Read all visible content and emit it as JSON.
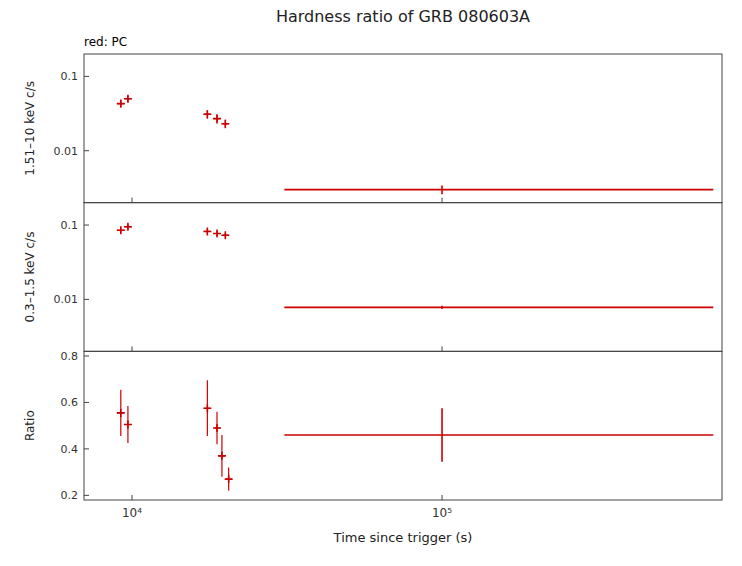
{
  "chart_data": [
    {
      "type": "scatter",
      "title": "Hardness ratio of GRB 080603A",
      "annotation": "red: PC",
      "ylabel": "1.51–10 keV c/s",
      "log": true,
      "grid": false,
      "tick_labels": "y",
      "xlim": [
        7000,
        800000
      ],
      "xticks": [
        {
          "value": 10000,
          "label": "10⁴"
        },
        {
          "value": 100000,
          "label": "10⁵"
        }
      ],
      "ylim": [
        0.002,
        0.2
      ],
      "yticks": [
        0.01,
        0.1
      ],
      "series": [
        {
          "type": "scatter",
          "marker": "plus",
          "color": "#cc0000",
          "x": [
            9200,
            9700,
            17500,
            18800,
            20000
          ],
          "values": [
            0.043,
            0.05,
            0.031,
            0.027,
            0.023
          ],
          "x_errors": [
            250,
            250,
            400,
            400,
            400
          ],
          "errors": [
            0.005,
            0.005,
            0.004,
            0.004,
            0.003
          ]
        },
        {
          "type": "segment",
          "line_style": "solid",
          "color": "#cc0000",
          "x": [
            31000,
            750000
          ],
          "value": 0.003,
          "error_x": 100000,
          "error": 0.0004
        }
      ]
    },
    {
      "type": "scatter",
      "ylabel": "0.3–1.5 keV c/s",
      "log": true,
      "grid": false,
      "tick_labels": "y",
      "xlim": [
        7000,
        800000
      ],
      "xticks": [
        {
          "value": 10000,
          "label": "10⁴"
        },
        {
          "value": 100000,
          "label": "10⁵"
        }
      ],
      "ylim": [
        0.002,
        0.2
      ],
      "yticks": [
        0.01,
        0.1
      ],
      "series": [
        {
          "type": "scatter",
          "marker": "plus",
          "color": "#cc0000",
          "x": [
            9200,
            9700,
            17500,
            18800,
            20000
          ],
          "values": [
            0.085,
            0.095,
            0.082,
            0.077,
            0.073
          ],
          "x_errors": [
            250,
            250,
            400,
            400,
            400
          ],
          "errors": [
            0.007,
            0.007,
            0.006,
            0.006,
            0.005
          ]
        },
        {
          "type": "segment",
          "line_style": "solid",
          "color": "#cc0000",
          "x": [
            31000,
            750000
          ],
          "value": 0.0078,
          "error_x": 100000,
          "error": 0.0004
        }
      ]
    },
    {
      "type": "scatter",
      "ylabel": "Ratio",
      "xlabel": "Time since trigger (s)",
      "log": "x",
      "grid": false,
      "xlim": [
        7000,
        800000
      ],
      "xticks": [
        {
          "value": 10000,
          "label": "10⁴"
        },
        {
          "value": 100000,
          "label": "10⁵"
        }
      ],
      "ylim": [
        0.18,
        0.82
      ],
      "yticks": [
        0.2,
        0.4,
        0.6,
        0.8
      ],
      "series": [
        {
          "type": "scatter",
          "marker": "plus",
          "color": "#cc0000",
          "x": [
            9200,
            9700,
            17500,
            18800,
            19500,
            20500
          ],
          "values": [
            0.555,
            0.505,
            0.575,
            0.49,
            0.37,
            0.27
          ],
          "x_errors": [
            250,
            250,
            400,
            400,
            400,
            400
          ],
          "errors": [
            0.1,
            0.08,
            0.12,
            0.07,
            0.09,
            0.05
          ]
        },
        {
          "type": "segment",
          "line_style": "solid",
          "color": "#cc0000",
          "x": [
            31000,
            750000
          ],
          "value": 0.46,
          "error_x": 100000,
          "error_low": 0.115,
          "error_high": 0.115
        }
      ]
    }
  ]
}
